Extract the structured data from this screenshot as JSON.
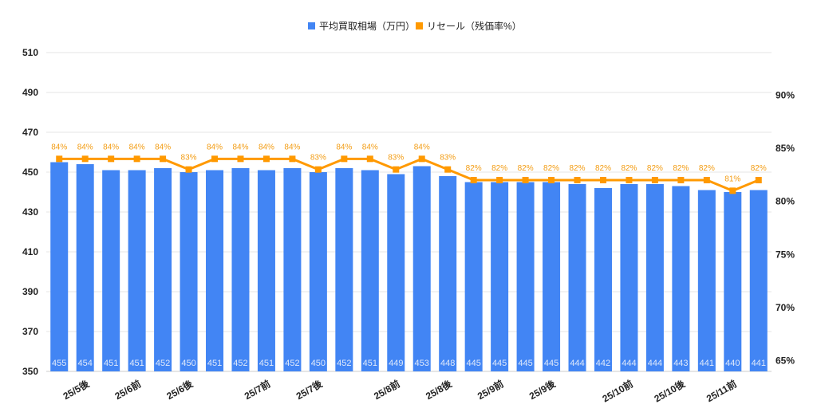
{
  "chart_data": {
    "type": "bar+line",
    "categories": [
      "",
      "25/5後",
      "",
      "25/6前",
      "",
      "25/6後",
      "",
      "",
      "25/7前",
      "",
      "25/7後",
      "",
      "",
      "25/8前",
      "",
      "25/8後",
      "",
      "25/9前",
      "",
      "25/9後",
      "",
      "",
      "25/10前",
      "",
      "25/10後",
      "",
      "25/11前",
      ""
    ],
    "series": [
      {
        "name": "平均買取相場（万円）",
        "type": "bar",
        "axis": "left",
        "color": "#4285f4",
        "values": [
          455,
          454,
          451,
          451,
          452,
          450,
          451,
          452,
          451,
          452,
          450,
          452,
          451,
          449,
          453,
          448,
          445,
          445,
          445,
          445,
          444,
          442,
          444,
          444,
          443,
          441,
          440,
          441
        ]
      },
      {
        "name": "リセール（残価率%）",
        "type": "line",
        "axis": "right",
        "color": "#ff9900",
        "values": [
          84,
          84,
          84,
          84,
          84,
          83,
          84,
          84,
          84,
          84,
          83,
          84,
          84,
          83,
          84,
          83,
          82,
          82,
          82,
          82,
          82,
          82,
          82,
          82,
          82,
          82,
          81,
          82
        ]
      }
    ],
    "left_axis": {
      "ylim": [
        350,
        510
      ],
      "ticks": [
        "350",
        "370",
        "390",
        "410",
        "430",
        "450",
        "470",
        "490",
        "510"
      ]
    },
    "right_axis": {
      "ylim": [
        64,
        94
      ],
      "ticks": [
        "65%",
        "70%",
        "75%",
        "80%",
        "85%",
        "90%"
      ]
    },
    "grid": true,
    "legend": "top"
  }
}
